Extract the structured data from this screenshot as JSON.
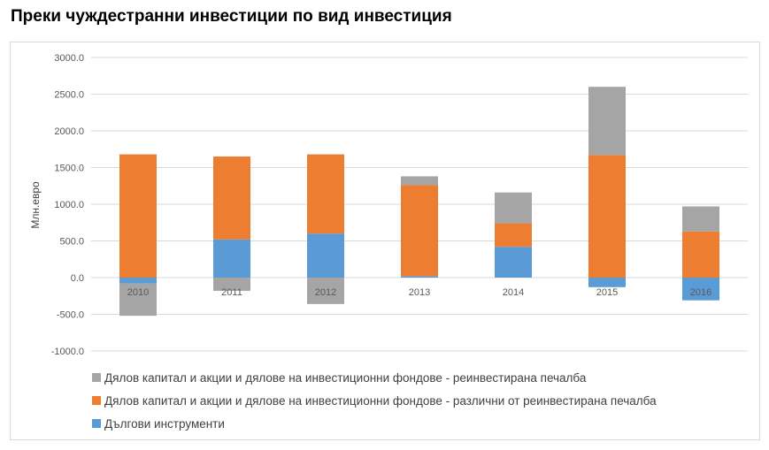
{
  "title": "Преки чуждестранни инвестиции по вид инвестиция",
  "chart_data": {
    "type": "bar",
    "stacked": true,
    "categories": [
      "2010",
      "2011",
      "2012",
      "2013",
      "2014",
      "2015",
      "2016"
    ],
    "ylabel": "Млн.евро",
    "xlabel": "",
    "ylim": [
      -1000,
      3000
    ],
    "yticks": [
      "3000.0",
      "2500.0",
      "2000.0",
      "1500.0",
      "1000.0",
      "500.0",
      "0.0",
      "-500.0",
      "-1000.0"
    ],
    "grid": true,
    "legend_position": "bottom",
    "series": [
      {
        "name": "Дългови инструменти",
        "color": "#5b9bd5",
        "values": [
          -80,
          520,
          600,
          20,
          420,
          -130,
          -310
        ]
      },
      {
        "name": "Дялов капитал  и акции и дялове на инвестиционни фондове - различни от реинвестирана печалба",
        "color": "#ed7d31",
        "values": [
          1680,
          1130,
          1080,
          1240,
          320,
          1670,
          630
        ]
      },
      {
        "name": "Дялов капитал  и акции и дялове на инвестиционни фондове - реинвестирана печалба",
        "color": "#a5a5a5",
        "values": [
          -440,
          -180,
          -360,
          120,
          420,
          930,
          340
        ]
      }
    ],
    "legend_order": [
      2,
      1,
      0
    ]
  }
}
